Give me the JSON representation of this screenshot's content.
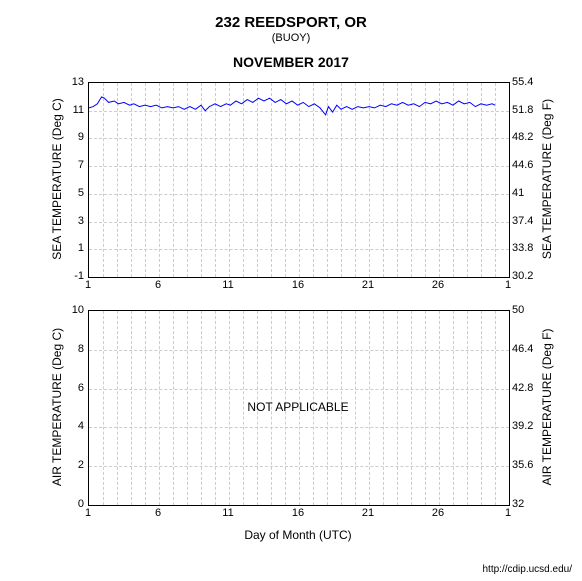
{
  "header": {
    "title": "232 REEDSPORT, OR",
    "subtitle": "(BUOY)",
    "month": "NOVEMBER 2017"
  },
  "footer": {
    "url": "http://cdip.ucsd.edu/"
  },
  "xaxis": {
    "label": "Day of Month (UTC)",
    "min": 1,
    "max": 31,
    "ticks": [
      1,
      6,
      11,
      16,
      21,
      26,
      1
    ],
    "tick_labels": [
      "1",
      "6",
      "11",
      "16",
      "21",
      "26",
      "1"
    ],
    "grid_color": "#cccccc"
  },
  "chart1": {
    "type": "line",
    "ylabel_left": "SEA TEMPERATURE (Deg C)",
    "ylabel_right": "SEA TEMPERATURE (Deg F)",
    "ylim_left": [
      -1,
      13
    ],
    "yticks_left": [
      -1,
      1,
      3,
      5,
      7,
      9,
      11,
      13
    ],
    "yticks_right": [
      30.2,
      33.8,
      37.4,
      41,
      44.6,
      48.2,
      51.8,
      55.4
    ],
    "line_color": "#0000ff",
    "line_width": 1,
    "background": "#ffffff",
    "grid_color": "#cccccc",
    "data": [
      [
        1,
        11.2
      ],
      [
        1.3,
        11.3
      ],
      [
        1.6,
        11.5
      ],
      [
        1.9,
        12.0
      ],
      [
        2.1,
        11.9
      ],
      [
        2.4,
        11.6
      ],
      [
        2.8,
        11.7
      ],
      [
        3.1,
        11.5
      ],
      [
        3.5,
        11.6
      ],
      [
        3.9,
        11.4
      ],
      [
        4.2,
        11.5
      ],
      [
        4.6,
        11.3
      ],
      [
        5.0,
        11.4
      ],
      [
        5.4,
        11.3
      ],
      [
        5.8,
        11.4
      ],
      [
        6.2,
        11.2
      ],
      [
        6.6,
        11.3
      ],
      [
        7.0,
        11.2
      ],
      [
        7.4,
        11.3
      ],
      [
        7.8,
        11.1
      ],
      [
        8.2,
        11.3
      ],
      [
        8.6,
        11.1
      ],
      [
        9.0,
        11.4
      ],
      [
        9.3,
        11.0
      ],
      [
        9.6,
        11.3
      ],
      [
        10.0,
        11.5
      ],
      [
        10.4,
        11.3
      ],
      [
        10.8,
        11.5
      ],
      [
        11.1,
        11.4
      ],
      [
        11.5,
        11.7
      ],
      [
        11.9,
        11.5
      ],
      [
        12.3,
        11.8
      ],
      [
        12.7,
        11.6
      ],
      [
        13.1,
        11.9
      ],
      [
        13.5,
        11.7
      ],
      [
        13.9,
        11.9
      ],
      [
        14.3,
        11.6
      ],
      [
        14.7,
        11.8
      ],
      [
        15.1,
        11.5
      ],
      [
        15.5,
        11.7
      ],
      [
        15.9,
        11.4
      ],
      [
        16.3,
        11.6
      ],
      [
        16.7,
        11.3
      ],
      [
        17.1,
        11.5
      ],
      [
        17.5,
        11.2
      ],
      [
        17.9,
        10.7
      ],
      [
        18.1,
        11.3
      ],
      [
        18.4,
        10.9
      ],
      [
        18.7,
        11.4
      ],
      [
        19.0,
        11.1
      ],
      [
        19.4,
        11.3
      ],
      [
        19.8,
        11.1
      ],
      [
        20.2,
        11.3
      ],
      [
        20.6,
        11.2
      ],
      [
        21.0,
        11.3
      ],
      [
        21.4,
        11.2
      ],
      [
        21.8,
        11.4
      ],
      [
        22.2,
        11.3
      ],
      [
        22.6,
        11.5
      ],
      [
        23.0,
        11.4
      ],
      [
        23.4,
        11.6
      ],
      [
        23.8,
        11.4
      ],
      [
        24.2,
        11.5
      ],
      [
        24.6,
        11.3
      ],
      [
        25.0,
        11.6
      ],
      [
        25.4,
        11.5
      ],
      [
        25.8,
        11.7
      ],
      [
        26.2,
        11.5
      ],
      [
        26.6,
        11.6
      ],
      [
        27.0,
        11.4
      ],
      [
        27.4,
        11.7
      ],
      [
        27.8,
        11.5
      ],
      [
        28.2,
        11.6
      ],
      [
        28.6,
        11.3
      ],
      [
        29.0,
        11.5
      ],
      [
        29.4,
        11.4
      ],
      [
        29.8,
        11.5
      ],
      [
        30.0,
        11.4
      ]
    ]
  },
  "chart2": {
    "type": "line",
    "ylabel_left": "AIR TEMPERATURE (Deg C)",
    "ylabel_right": "AIR TEMPERATURE (Deg F)",
    "ylim_left": [
      0,
      10
    ],
    "yticks_left": [
      0,
      2,
      4,
      6,
      8,
      10
    ],
    "yticks_right": [
      32,
      35.6,
      39.2,
      42.8,
      46.4,
      50
    ],
    "overlay_text": "NOT APPLICABLE",
    "background": "#ffffff",
    "grid_color": "#cccccc",
    "data": []
  }
}
